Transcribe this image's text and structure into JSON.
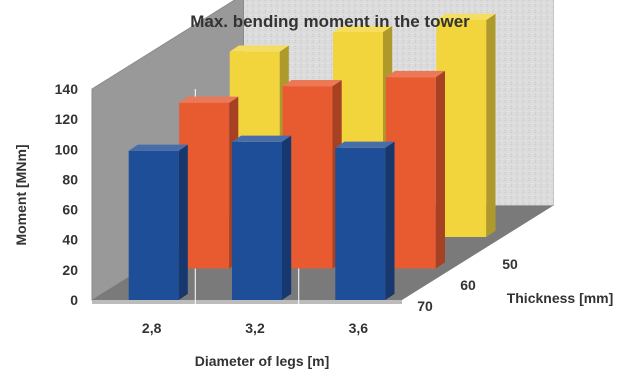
{
  "chart_data": {
    "type": "bar",
    "title": "Max. bending moment in the tower",
    "xlabel": "Diameter of legs [m]",
    "ylabel": "Moment [MNm]",
    "zlabel": "Thickness [mm]",
    "categories": [
      "2,8",
      "3,2",
      "3,6"
    ],
    "yticks": [
      0,
      20,
      40,
      60,
      80,
      100,
      120,
      140
    ],
    "ylim": [
      0,
      140
    ],
    "series": [
      {
        "name": "50",
        "color": "#f2d53c",
        "values": [
          123,
          136,
          144
        ]
      },
      {
        "name": "60",
        "color": "#e85a30",
        "values": [
          110,
          121,
          127
        ]
      },
      {
        "name": "70",
        "color": "#1f4e99",
        "values": [
          99,
          105,
          101
        ]
      }
    ],
    "chart_style": "3d-column",
    "grid": false,
    "legend": "none"
  }
}
